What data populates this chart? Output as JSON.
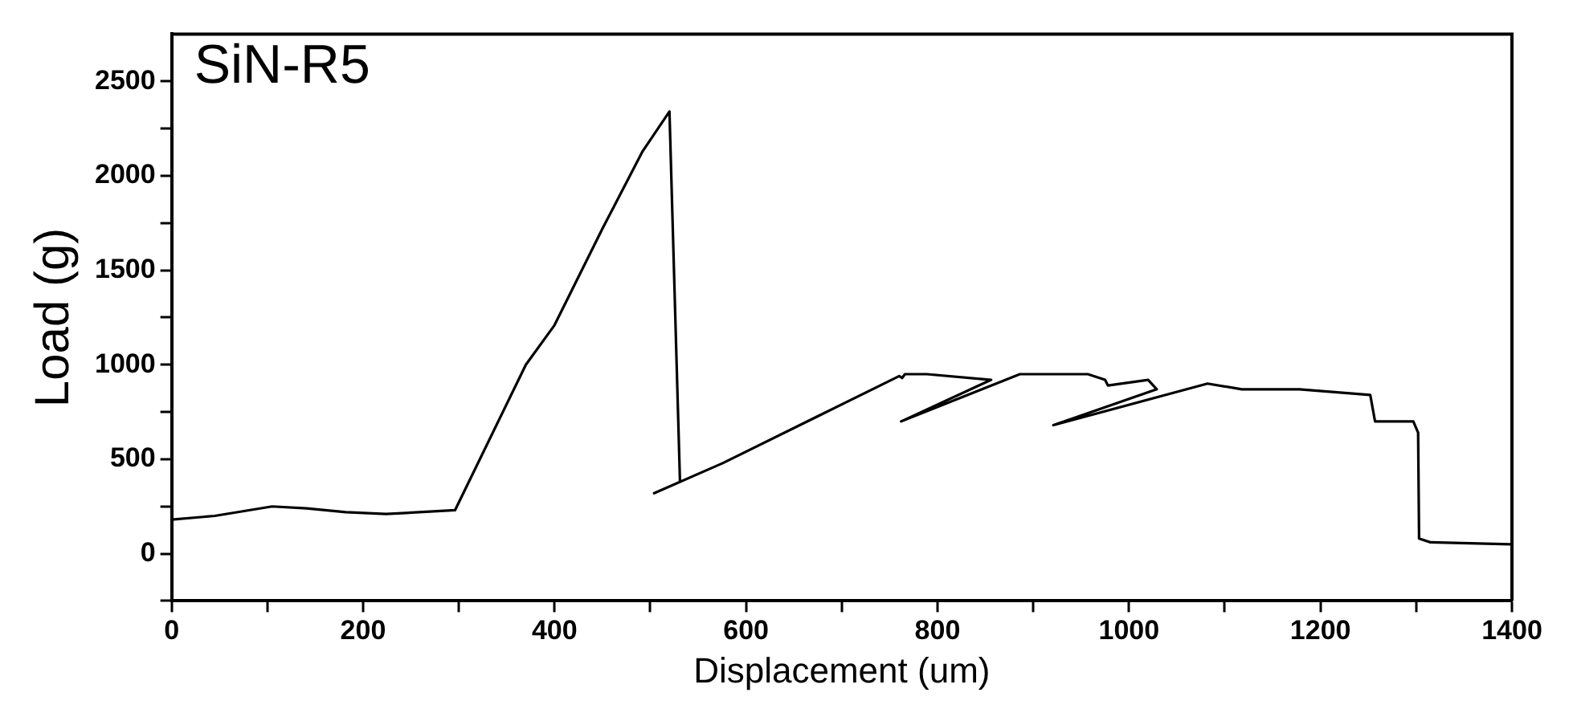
{
  "chart_data": {
    "type": "line",
    "title": "SiN-R5",
    "xlabel": "Displacement (um)",
    "ylabel": "Load (g)",
    "series": [
      {
        "color": "#000000",
        "x": [
          0,
          45,
          105,
          141,
          182,
          224,
          296,
          370,
          400,
          450,
          492,
          520,
          531,
          504,
          576,
          760,
          763,
          766,
          789,
          856,
          762,
          886,
          957,
          975,
          978,
          1020,
          1029,
          921,
          1082,
          1118,
          1178,
          1252,
          1257,
          1297,
          1302,
          1303,
          1315,
          1398
        ],
        "values": [
          180,
          200,
          250,
          240,
          220,
          210,
          230,
          1000,
          1210,
          1720,
          2130,
          2340,
          380,
          320,
          480,
          940,
          930,
          950,
          950,
          920,
          700,
          950,
          950,
          920,
          890,
          920,
          870,
          680,
          900,
          870,
          870,
          840,
          700,
          700,
          640,
          80,
          60,
          50
        ]
      }
    ],
    "xlim": [
      0,
      1400
    ],
    "ylim": [
      -250,
      2750
    ],
    "xticks": [
      0,
      {
        "value": 100,
        "label": null
      },
      200,
      {
        "value": 300,
        "label": null
      },
      400,
      {
        "value": 500,
        "label": null
      },
      600,
      {
        "value": 700,
        "label": null
      },
      800,
      {
        "value": 900,
        "label": null
      },
      1000,
      {
        "value": 1100,
        "label": null
      },
      1200,
      {
        "value": 1300,
        "label": null
      },
      1400
    ],
    "yticks": [
      {
        "value": -250,
        "label": null
      },
      0,
      {
        "value": 250,
        "label": null
      },
      500,
      {
        "value": 750,
        "label": null
      },
      1000,
      {
        "value": 1250,
        "label": null
      },
      1500,
      {
        "value": 1750,
        "label": null
      },
      2000,
      {
        "value": 2250,
        "label": null
      },
      2500
    ],
    "marker": "none",
    "line_style": "solid"
  }
}
